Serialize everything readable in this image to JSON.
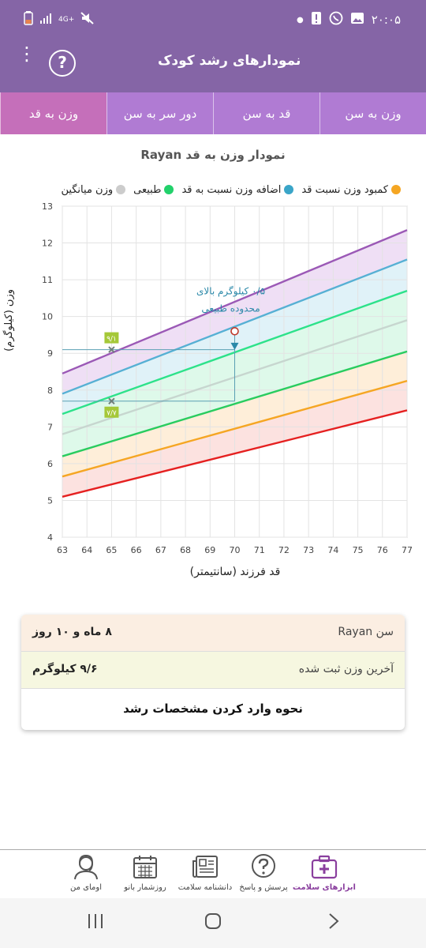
{
  "status_bar": {
    "time": "۲۰:۰۵",
    "network": "4G+"
  },
  "app_bar": {
    "title": "نمودارهای رشد کودک",
    "help_icon": "?"
  },
  "tabs": [
    {
      "label": "وزن به قد",
      "active": true
    },
    {
      "label": "دور سر به سن",
      "active": false
    },
    {
      "label": "قد به سن",
      "active": false
    },
    {
      "label": "وزن به سن",
      "active": false
    }
  ],
  "chart_title": "نمودار وزن به قد Rayan",
  "legend": [
    {
      "label": "کمبود وزن نسبت قد",
      "color": "#f5a623"
    },
    {
      "label": "اضافه وزن نسبت به قد",
      "color": "#3aa5c8"
    },
    {
      "label": "طبیعی",
      "color": "#22d16b"
    },
    {
      "label": "وزن میانگین",
      "color": "#cccccc"
    }
  ],
  "chart_data": {
    "type": "line",
    "xlabel": "قد فرزند (سانتیمتر)",
    "ylabel": "وزن (کیلوگرم)",
    "xlim": [
      63,
      77
    ],
    "ylim": [
      4,
      13
    ],
    "x_ticks": [
      63,
      64,
      65,
      66,
      67,
      68,
      69,
      70,
      71,
      72,
      73,
      74,
      75,
      76,
      77
    ],
    "y_ticks": [
      4,
      5,
      6,
      7,
      8,
      9,
      10,
      11,
      12,
      13
    ],
    "grid": true,
    "series": [
      {
        "color": "#9b59b6",
        "x": [
          63,
          77
        ],
        "y": [
          8.45,
          12.35
        ]
      },
      {
        "color": "#56b0d4",
        "x": [
          63,
          77
        ],
        "y": [
          7.9,
          11.55
        ]
      },
      {
        "color": "#2de28a",
        "x": [
          63,
          77
        ],
        "y": [
          7.35,
          10.7
        ]
      },
      {
        "color": "#c7d6cf",
        "x": [
          63,
          77
        ],
        "y": [
          6.8,
          9.9
        ]
      },
      {
        "color": "#29cc5f",
        "x": [
          63,
          77
        ],
        "y": [
          6.2,
          9.05
        ]
      },
      {
        "color": "#f5a623",
        "x": [
          63,
          77
        ],
        "y": [
          5.65,
          8.25
        ]
      },
      {
        "color": "#e52020",
        "x": [
          63,
          77
        ],
        "y": [
          5.1,
          7.45
        ]
      }
    ],
    "bands": [
      {
        "color": "#e9d4f2",
        "from": 0,
        "to": 1
      },
      {
        "color": "#d6eef6",
        "from": 1,
        "to": 2
      },
      {
        "color": "#d3f7e3",
        "from": 2,
        "to": 4
      },
      {
        "color": "#fde8cc",
        "from": 4,
        "to": 5
      },
      {
        "color": "#fbd8d5",
        "from": 5,
        "to": 6
      }
    ],
    "points": [
      {
        "x": 65,
        "y": 9.1,
        "label": "۹/۱"
      },
      {
        "x": 65,
        "y": 7.7,
        "label": "۷/۷"
      }
    ],
    "child_point": {
      "x": 70,
      "y": 9.6
    },
    "average_marker": {
      "x": 70,
      "y": 9.2
    },
    "annotation": [
      "۰/۵ کیلوگرم بالای",
      "محدوده طبیعی"
    ]
  },
  "info_card": {
    "age_label": "سن Rayan",
    "age_value": "۸ ماه و ۱۰ روز",
    "weight_label": "آخرین وزن ثبت شده",
    "weight_value": "۹/۶ کیلوگرم",
    "action": "نحوه وارد کردن مشخصات رشد"
  },
  "bottom_nav": [
    {
      "label": "ابزارهای سلامت",
      "icon": "medical-kit-icon",
      "active": true
    },
    {
      "label": "پرسش و پاسخ",
      "icon": "question-bubble-icon",
      "active": false
    },
    {
      "label": "دانشنامه سلامت",
      "icon": "newspaper-icon",
      "active": false
    },
    {
      "label": "روزشمار بانو",
      "icon": "calendar-icon",
      "active": false
    },
    {
      "label": "اومای من",
      "icon": "user-avatar-icon",
      "active": false
    }
  ]
}
